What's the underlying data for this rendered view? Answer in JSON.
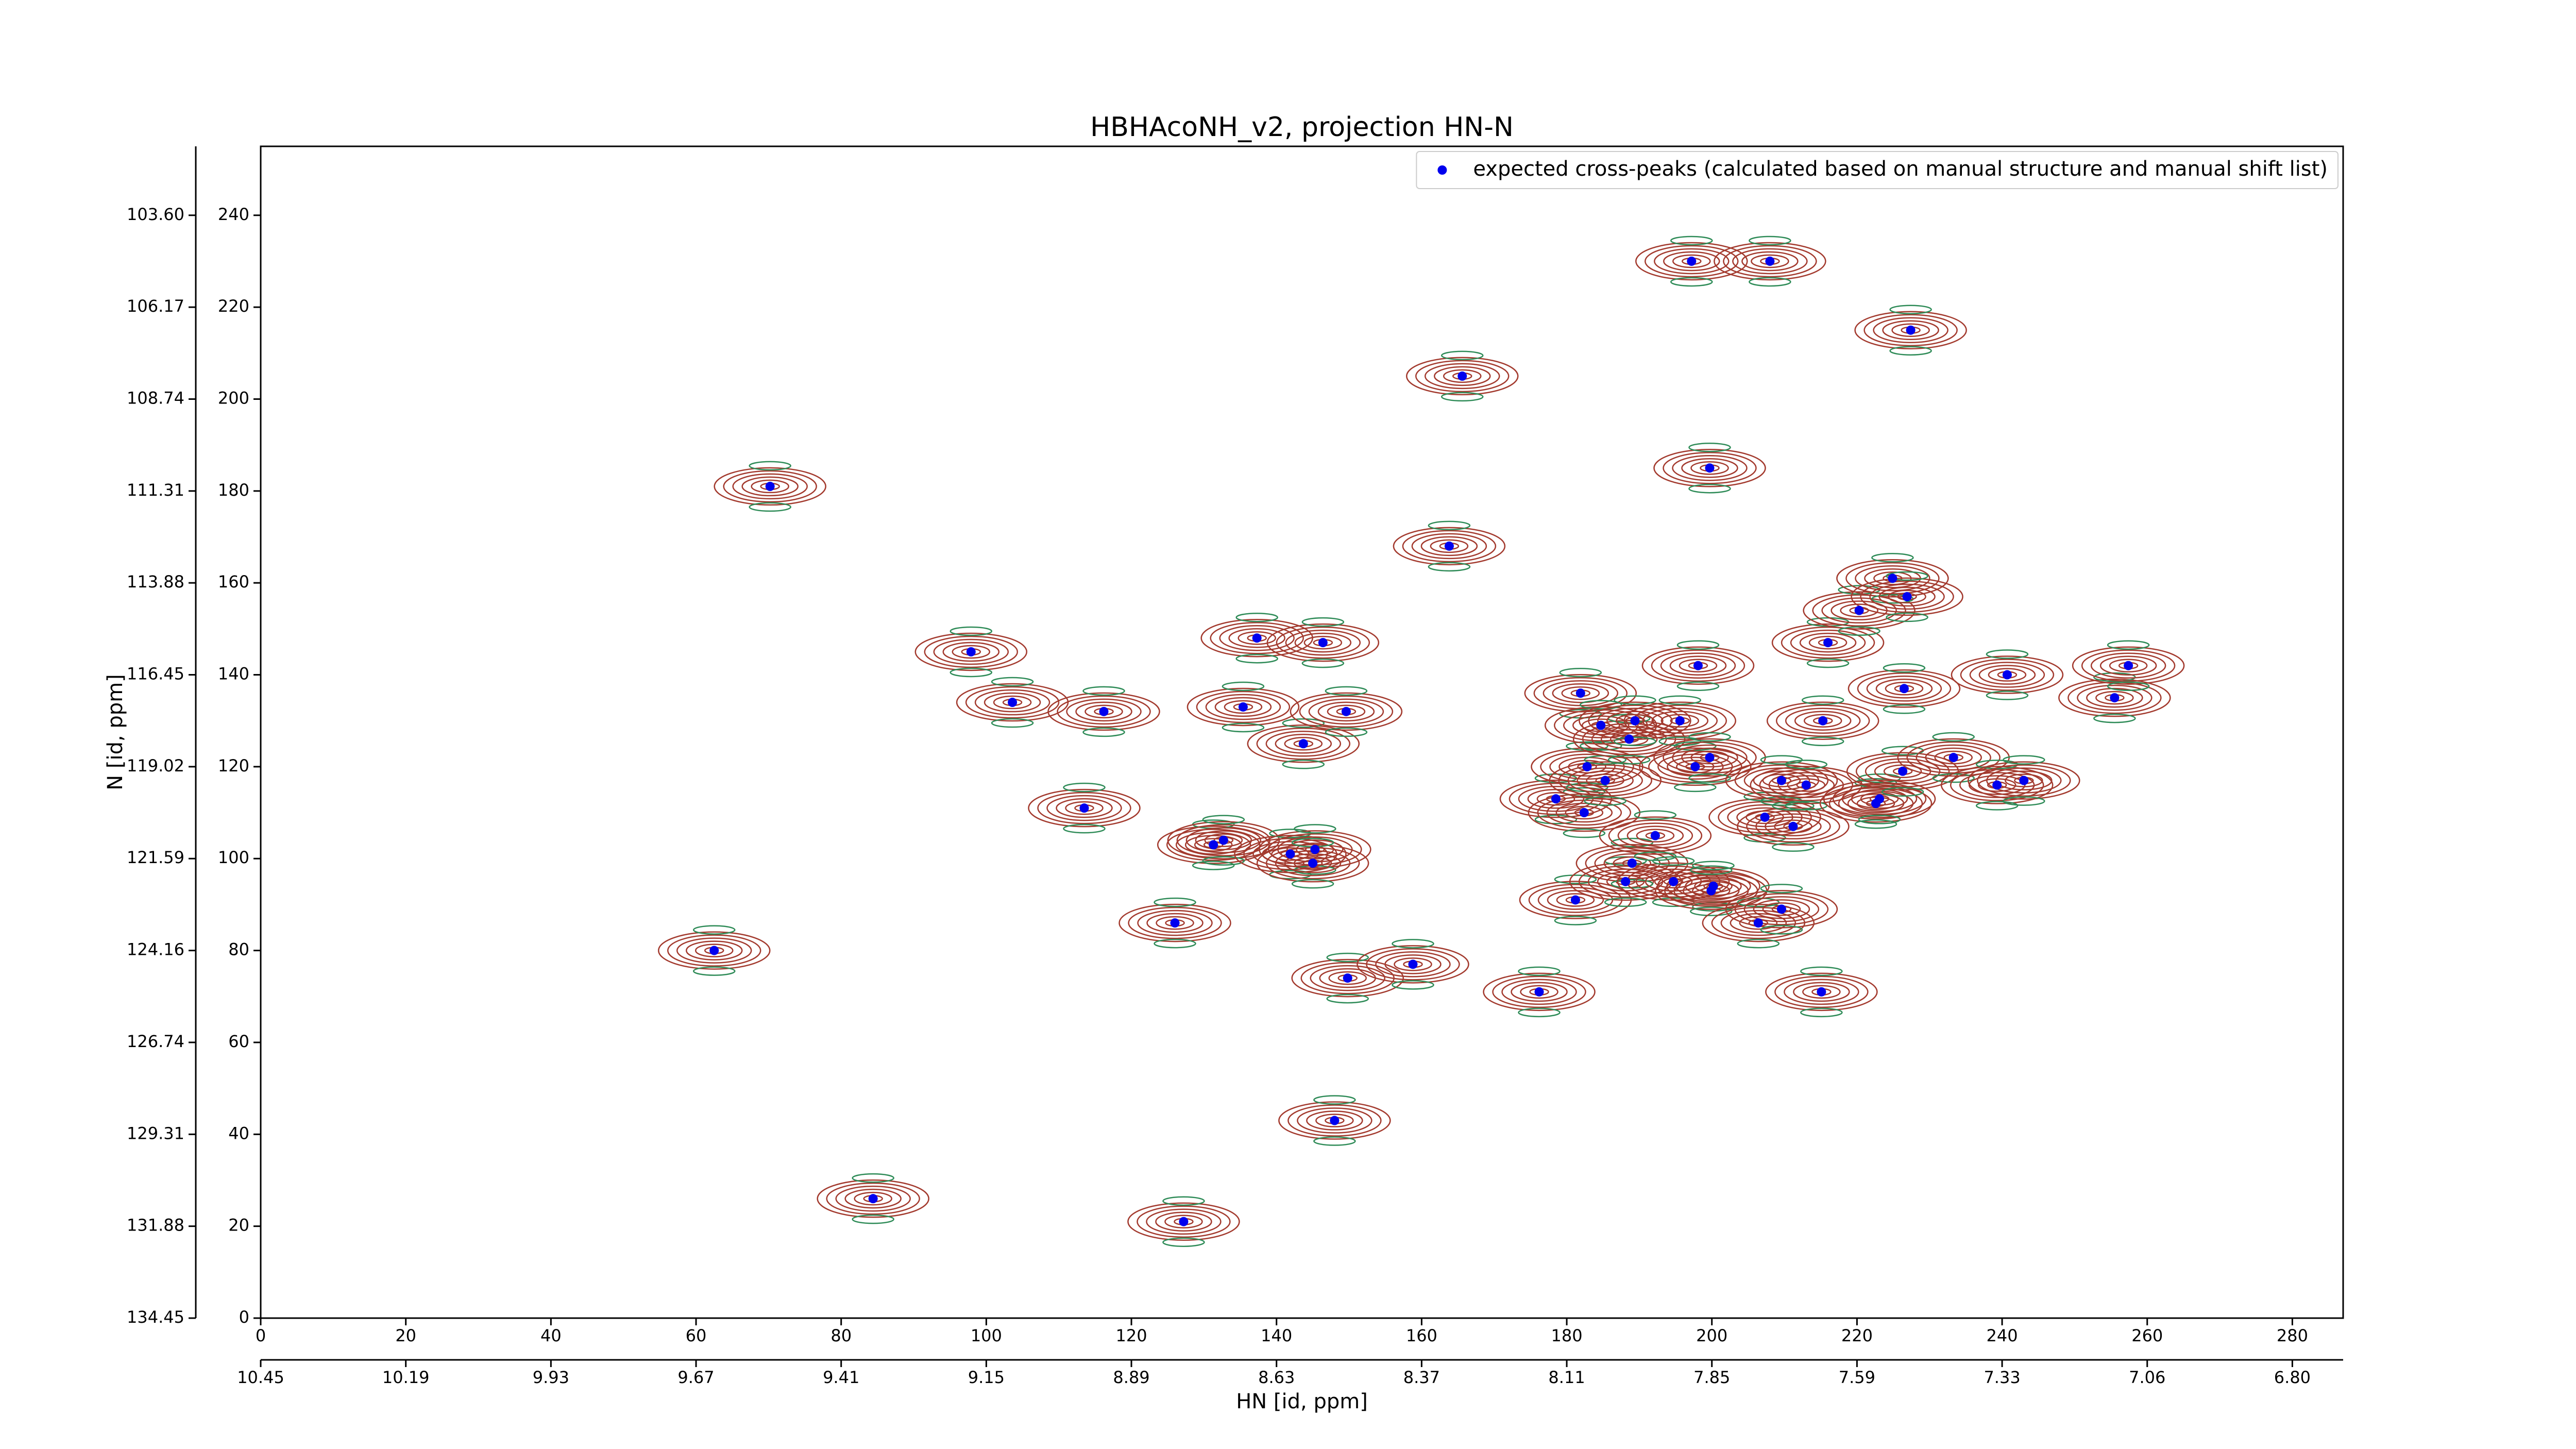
{
  "chart_data": {
    "type": "scatter",
    "title": "HBHAcoNH_v2, projection HN-N",
    "x_label": "HN [id, ppm]",
    "y_label": "N [id, ppm]",
    "xlim": [
      0,
      287
    ],
    "ylim": [
      0,
      255
    ],
    "xticks": [
      0,
      20,
      40,
      60,
      80,
      100,
      120,
      140,
      160,
      180,
      200,
      220,
      240,
      260,
      280
    ],
    "yticks": [
      0,
      20,
      40,
      60,
      80,
      100,
      120,
      140,
      160,
      180,
      200,
      220,
      240
    ],
    "x2ticks": [
      {
        "value": 0,
        "label": "10.45"
      },
      {
        "value": 20,
        "label": "10.19"
      },
      {
        "value": 40,
        "label": "9.93"
      },
      {
        "value": 60,
        "label": "9.67"
      },
      {
        "value": 80,
        "label": "9.41"
      },
      {
        "value": 100,
        "label": "9.15"
      },
      {
        "value": 120,
        "label": "8.89"
      },
      {
        "value": 140,
        "label": "8.63"
      },
      {
        "value": 160,
        "label": "8.37"
      },
      {
        "value": 180,
        "label": "8.11"
      },
      {
        "value": 200,
        "label": "7.85"
      },
      {
        "value": 220,
        "label": "7.59"
      },
      {
        "value": 240,
        "label": "7.33"
      },
      {
        "value": 260,
        "label": "7.06"
      },
      {
        "value": 280,
        "label": "6.80"
      }
    ],
    "y2ticks": [
      {
        "value": 0,
        "label": "134.45"
      },
      {
        "value": 20,
        "label": "131.88"
      },
      {
        "value": 40,
        "label": "129.31"
      },
      {
        "value": 60,
        "label": "126.74"
      },
      {
        "value": 80,
        "label": "124.16"
      },
      {
        "value": 100,
        "label": "121.59"
      },
      {
        "value": 120,
        "label": "119.02"
      },
      {
        "value": 140,
        "label": "116.45"
      },
      {
        "value": 160,
        "label": "113.88"
      },
      {
        "value": 180,
        "label": "111.31"
      },
      {
        "value": 200,
        "label": "108.74"
      },
      {
        "value": 220,
        "label": "106.17"
      },
      {
        "value": 240,
        "label": "103.60"
      }
    ],
    "legend": "upper right",
    "series": [
      {
        "name": "expected cross-peaks (calculated based on manual structure and manual shift list)",
        "color": "#0000ee",
        "x": [
          70.2,
          62.5,
          84.4,
          97.9,
          103.6,
          113.5,
          116.2,
          126,
          127.2,
          131.3,
          132.7,
          135.4,
          137.3,
          141.9,
          143.7,
          145.3,
          145,
          146.4,
          148,
          149.6,
          149.8,
          158.8,
          163.8,
          165.6,
          176.2,
          178.5,
          181.2,
          181.9,
          182.4,
          182.8,
          184.7,
          185.3,
          188.1,
          188.6,
          189,
          189.4,
          192.2,
          194.7,
          195.6,
          197.2,
          197.7,
          198.1,
          199.7,
          199.7,
          200.2,
          199.9,
          206.4,
          207.3,
          208,
          209.6,
          209.6,
          211.2,
          213,
          215.1,
          215.3,
          216,
          220.3,
          222.6,
          223.1,
          224.9,
          226.3,
          226.5,
          226.9,
          227.4,
          233.3,
          239.3,
          240.7,
          243,
          255.5,
          257.4
        ],
        "y": [
          181,
          80,
          26,
          145,
          134,
          111,
          132,
          86,
          21,
          103,
          104,
          133,
          148,
          101,
          125,
          102,
          99,
          147,
          43,
          132,
          74,
          77,
          168,
          205,
          71,
          113,
          91,
          136,
          110,
          120,
          129,
          117,
          95,
          126,
          99,
          130,
          105,
          95,
          130,
          230,
          120,
          142,
          185,
          122,
          94,
          93,
          86,
          109,
          230,
          117,
          89,
          107,
          116,
          71,
          130,
          147,
          154,
          112,
          113,
          161,
          119,
          137,
          157,
          215,
          122,
          116,
          140,
          117,
          135,
          142
        ]
      }
    ]
  }
}
